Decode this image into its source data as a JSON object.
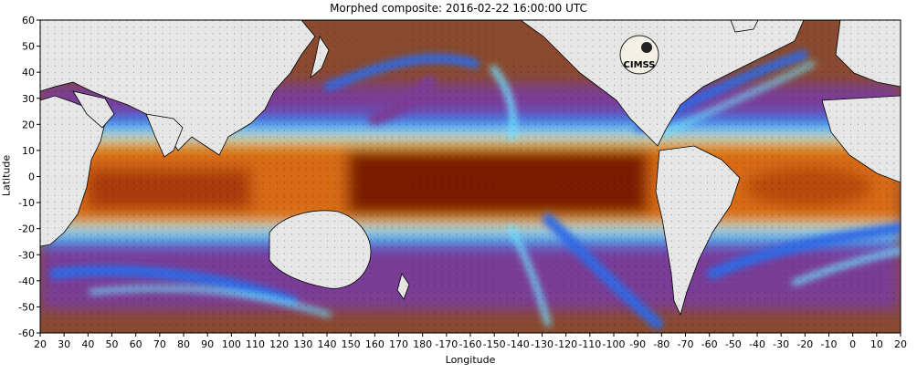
{
  "title": "Morphed composite: 2016-02-22 16:00:00 UTC",
  "axes": {
    "x_label": "Longitude",
    "y_label": "Latitude",
    "x_ticks": [
      "20",
      "30",
      "40",
      "50",
      "60",
      "70",
      "80",
      "90",
      "100",
      "110",
      "120",
      "130",
      "140",
      "150",
      "160",
      "170",
      "180",
      "-170",
      "-160",
      "-150",
      "-140",
      "-130",
      "-120",
      "-110",
      "-100",
      "-90",
      "-80",
      "-70",
      "-60",
      "-50",
      "-40",
      "-30",
      "-20",
      "-10",
      "0",
      "10",
      "20"
    ],
    "y_ticks": [
      "60",
      "50",
      "40",
      "30",
      "20",
      "10",
      "0",
      "-10",
      "-20",
      "-30",
      "-40",
      "-50",
      "-60"
    ]
  },
  "logo": {
    "text": "CIMSS"
  },
  "colors": {
    "land": "#e6e6e6",
    "dry": "#8a4a2f",
    "purple": "#7a3c96",
    "blue": "#2f6be6",
    "cyan": "#6fe0ff",
    "green": "#8fe08f",
    "yellow": "#e6d23a",
    "orange": "#d86a12",
    "wet": "#7a1a05"
  }
}
